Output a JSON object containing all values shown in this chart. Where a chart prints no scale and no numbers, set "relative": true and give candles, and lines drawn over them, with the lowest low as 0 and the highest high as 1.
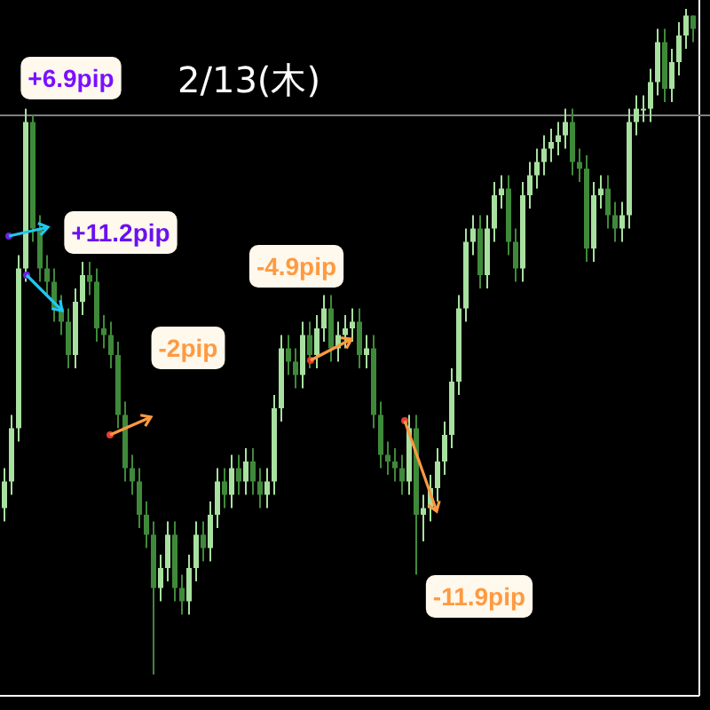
{
  "chart_data": {
    "type": "candlestick",
    "title": "2/13(木)",
    "relative": true,
    "colors": [
      "#a8e0a0",
      "#a8e0a0",
      "#a8e0a0",
      "#a8e0a0",
      "#3f8a3a",
      "#3f8a3a",
      "#3f8a3a",
      "#3f8a3a",
      "#3f8a3a",
      "#3f8a3a",
      "#a8e0a0",
      "#a8e0a0",
      "#3f8a3a",
      "#3f8a3a",
      "#3f8a3a",
      "#3f8a3a",
      "#3f8a3a",
      "#3f8a3a",
      "#3f8a3a",
      "#3f8a3a",
      "#3f8a3a",
      "#3f8a3a",
      "#a8e0a0",
      "#a8e0a0",
      "#3f8a3a",
      "#3f8a3a",
      "#a8e0a0",
      "#a8e0a0",
      "#3f8a3a",
      "#a8e0a0",
      "#a8e0a0",
      "#3f8a3a",
      "#a8e0a0",
      "#3f8a3a",
      "#a8e0a0",
      "#3f8a3a",
      "#3f8a3a",
      "#a8e0a0",
      "#a8e0a0",
      "#a8e0a0",
      "#3f8a3a",
      "#3f8a3a",
      "#a8e0a0",
      "#3f8a3a",
      "#a8e0a0",
      "#a8e0a0",
      "#3f8a3a",
      "#a8e0a0",
      "#a8e0a0",
      "#a8e0a0",
      "#3f8a3a",
      "#a8e0a0",
      "#3f8a3a",
      "#3f8a3a",
      "#3f8a3a",
      "#3f8a3a",
      "#3f8a3a",
      "#a8e0a0",
      "#3f8a3a",
      "#a8e0a0",
      "#a8e0a0",
      "#a8e0a0",
      "#a8e0a0",
      "#a8e0a0",
      "#a8e0a0",
      "#a8e0a0",
      "#a8e0a0",
      "#3f8a3a",
      "#a8e0a0",
      "#a8e0a0",
      "#a8e0a0",
      "#3f8a3a",
      "#3f8a3a",
      "#a8e0a0",
      "#a8e0a0",
      "#a8e0a0",
      "#a8e0a0",
      "#a8e0a0",
      "#a8e0a0",
      "#a8e0a0",
      "#3f8a3a",
      "#3f8a3a",
      "#3f8a3a",
      "#a8e0a0",
      "#a8e0a0",
      "#3f8a3a",
      "#3f8a3a",
      "#a8e0a0",
      "#a8e0a0",
      "#a8e0a0",
      "#a8e0a0",
      "#a8e0a0",
      "#a8e0a0",
      "#3f8a3a",
      "#a8e0a0",
      "#a8e0a0",
      "#a8e0a0",
      "#3f8a3a"
    ],
    "categories": [
      null,
      null,
      null,
      null,
      null,
      null,
      null,
      null,
      null,
      null,
      null,
      null,
      null,
      null,
      null,
      null,
      null,
      null,
      null,
      null,
      null,
      null,
      null,
      null,
      null,
      null,
      null,
      null,
      null,
      null,
      null,
      null,
      null,
      null,
      null,
      null,
      null,
      null,
      null,
      null,
      null,
      null,
      null,
      null,
      null,
      null,
      null,
      null,
      null,
      null,
      null,
      null,
      null,
      null,
      null,
      null,
      null,
      null,
      null,
      null,
      null,
      null,
      null,
      null,
      null,
      null,
      null,
      null,
      null,
      null,
      null,
      null,
      null,
      null,
      null,
      null,
      null,
      null,
      null,
      null,
      null,
      null,
      null,
      null,
      null,
      null,
      null,
      null,
      null,
      null,
      null,
      null,
      null,
      null,
      null,
      null,
      null,
      null
    ],
    "ohlc": [
      [
        0.25,
        0.31,
        0.23,
        0.29
      ],
      [
        0.29,
        0.39,
        0.27,
        0.37
      ],
      [
        0.37,
        0.63,
        0.35,
        0.61
      ],
      [
        0.61,
        0.85,
        0.59,
        0.83
      ],
      [
        0.83,
        0.84,
        0.65,
        0.67
      ],
      [
        0.67,
        0.69,
        0.59,
        0.61
      ],
      [
        0.61,
        0.63,
        0.57,
        0.59
      ],
      [
        0.59,
        0.61,
        0.53,
        0.55
      ],
      [
        0.55,
        0.57,
        0.51,
        0.53
      ],
      [
        0.53,
        0.55,
        0.46,
        0.48
      ],
      [
        0.48,
        0.58,
        0.46,
        0.56
      ],
      [
        0.56,
        0.62,
        0.54,
        0.6
      ],
      [
        0.6,
        0.62,
        0.57,
        0.59
      ],
      [
        0.59,
        0.61,
        0.5,
        0.52
      ],
      [
        0.52,
        0.54,
        0.49,
        0.51
      ],
      [
        0.51,
        0.53,
        0.46,
        0.48
      ],
      [
        0.48,
        0.5,
        0.37,
        0.39
      ],
      [
        0.39,
        0.41,
        0.29,
        0.31
      ],
      [
        0.31,
        0.33,
        0.27,
        0.29
      ],
      [
        0.29,
        0.31,
        0.22,
        0.24
      ],
      [
        0.24,
        0.26,
        0.19,
        0.21
      ],
      [
        0.21,
        0.23,
        0.0,
        0.13
      ],
      [
        0.13,
        0.18,
        0.11,
        0.16
      ],
      [
        0.16,
        0.23,
        0.14,
        0.21
      ],
      [
        0.21,
        0.23,
        0.11,
        0.13
      ],
      [
        0.13,
        0.15,
        0.09,
        0.11
      ],
      [
        0.11,
        0.18,
        0.09,
        0.16
      ],
      [
        0.16,
        0.23,
        0.14,
        0.21
      ],
      [
        0.21,
        0.23,
        0.17,
        0.19
      ],
      [
        0.19,
        0.26,
        0.17,
        0.24
      ],
      [
        0.24,
        0.31,
        0.22,
        0.29
      ],
      [
        0.29,
        0.31,
        0.25,
        0.27
      ],
      [
        0.27,
        0.33,
        0.25,
        0.31
      ],
      [
        0.31,
        0.33,
        0.27,
        0.29
      ],
      [
        0.29,
        0.34,
        0.27,
        0.32
      ],
      [
        0.32,
        0.34,
        0.27,
        0.29
      ],
      [
        0.29,
        0.31,
        0.25,
        0.27
      ],
      [
        0.27,
        0.31,
        0.25,
        0.29
      ],
      [
        0.29,
        0.42,
        0.27,
        0.4
      ],
      [
        0.4,
        0.51,
        0.38,
        0.49
      ],
      [
        0.49,
        0.51,
        0.45,
        0.47
      ],
      [
        0.47,
        0.49,
        0.43,
        0.45
      ],
      [
        0.45,
        0.53,
        0.43,
        0.51
      ],
      [
        0.51,
        0.53,
        0.46,
        0.48
      ],
      [
        0.48,
        0.54,
        0.46,
        0.52
      ],
      [
        0.52,
        0.57,
        0.5,
        0.55
      ],
      [
        0.55,
        0.57,
        0.47,
        0.49
      ],
      [
        0.49,
        0.53,
        0.47,
        0.51
      ],
      [
        0.51,
        0.54,
        0.49,
        0.52
      ],
      [
        0.52,
        0.55,
        0.5,
        0.53
      ],
      [
        0.53,
        0.55,
        0.46,
        0.48
      ],
      [
        0.48,
        0.51,
        0.46,
        0.49
      ],
      [
        0.49,
        0.51,
        0.37,
        0.39
      ],
      [
        0.39,
        0.41,
        0.31,
        0.33
      ],
      [
        0.33,
        0.35,
        0.3,
        0.32
      ],
      [
        0.32,
        0.34,
        0.29,
        0.31
      ],
      [
        0.31,
        0.33,
        0.27,
        0.29
      ],
      [
        0.29,
        0.39,
        0.27,
        0.37
      ],
      [
        0.37,
        0.39,
        0.15,
        0.24
      ],
      [
        0.24,
        0.27,
        0.2,
        0.25
      ],
      [
        0.25,
        0.3,
        0.23,
        0.28
      ],
      [
        0.28,
        0.34,
        0.26,
        0.32
      ],
      [
        0.32,
        0.38,
        0.3,
        0.36
      ],
      [
        0.36,
        0.46,
        0.34,
        0.44
      ],
      [
        0.44,
        0.57,
        0.42,
        0.55
      ],
      [
        0.55,
        0.67,
        0.53,
        0.65
      ],
      [
        0.65,
        0.69,
        0.63,
        0.67
      ],
      [
        0.67,
        0.69,
        0.58,
        0.6
      ],
      [
        0.6,
        0.69,
        0.58,
        0.67
      ],
      [
        0.67,
        0.74,
        0.65,
        0.72
      ],
      [
        0.72,
        0.75,
        0.7,
        0.73
      ],
      [
        0.73,
        0.75,
        0.63,
        0.65
      ],
      [
        0.65,
        0.67,
        0.59,
        0.61
      ],
      [
        0.61,
        0.74,
        0.59,
        0.72
      ],
      [
        0.72,
        0.77,
        0.7,
        0.75
      ],
      [
        0.75,
        0.79,
        0.73,
        0.77
      ],
      [
        0.77,
        0.81,
        0.75,
        0.79
      ],
      [
        0.79,
        0.82,
        0.77,
        0.8
      ],
      [
        0.8,
        0.83,
        0.78,
        0.81
      ],
      [
        0.81,
        0.85,
        0.79,
        0.83
      ],
      [
        0.83,
        0.85,
        0.75,
        0.77
      ],
      [
        0.77,
        0.79,
        0.74,
        0.76
      ],
      [
        0.76,
        0.78,
        0.62,
        0.64
      ],
      [
        0.64,
        0.74,
        0.62,
        0.72
      ],
      [
        0.72,
        0.75,
        0.7,
        0.73
      ],
      [
        0.73,
        0.75,
        0.67,
        0.69
      ],
      [
        0.69,
        0.71,
        0.65,
        0.67
      ],
      [
        0.67,
        0.71,
        0.65,
        0.69
      ],
      [
        0.69,
        0.85,
        0.67,
        0.83
      ],
      [
        0.83,
        0.87,
        0.81,
        0.85
      ],
      [
        0.85,
        0.87,
        0.83,
        0.85
      ],
      [
        0.85,
        0.91,
        0.83,
        0.89
      ],
      [
        0.89,
        0.97,
        0.87,
        0.95
      ],
      [
        0.95,
        0.97,
        0.86,
        0.88
      ],
      [
        0.88,
        0.94,
        0.86,
        0.92
      ],
      [
        0.92,
        0.98,
        0.9,
        0.96
      ],
      [
        0.96,
        1.0,
        0.94,
        0.99
      ],
      [
        0.99,
        0.99,
        0.95,
        0.97
      ]
    ],
    "ref_lines": [
      {
        "axis": "y",
        "value": 0.84,
        "color": "#808080"
      }
    ],
    "annotations": [
      "+6.9pip",
      "+11.2pip",
      "-2pip",
      "-4.9pip",
      "-11.9pip"
    ]
  }
}
